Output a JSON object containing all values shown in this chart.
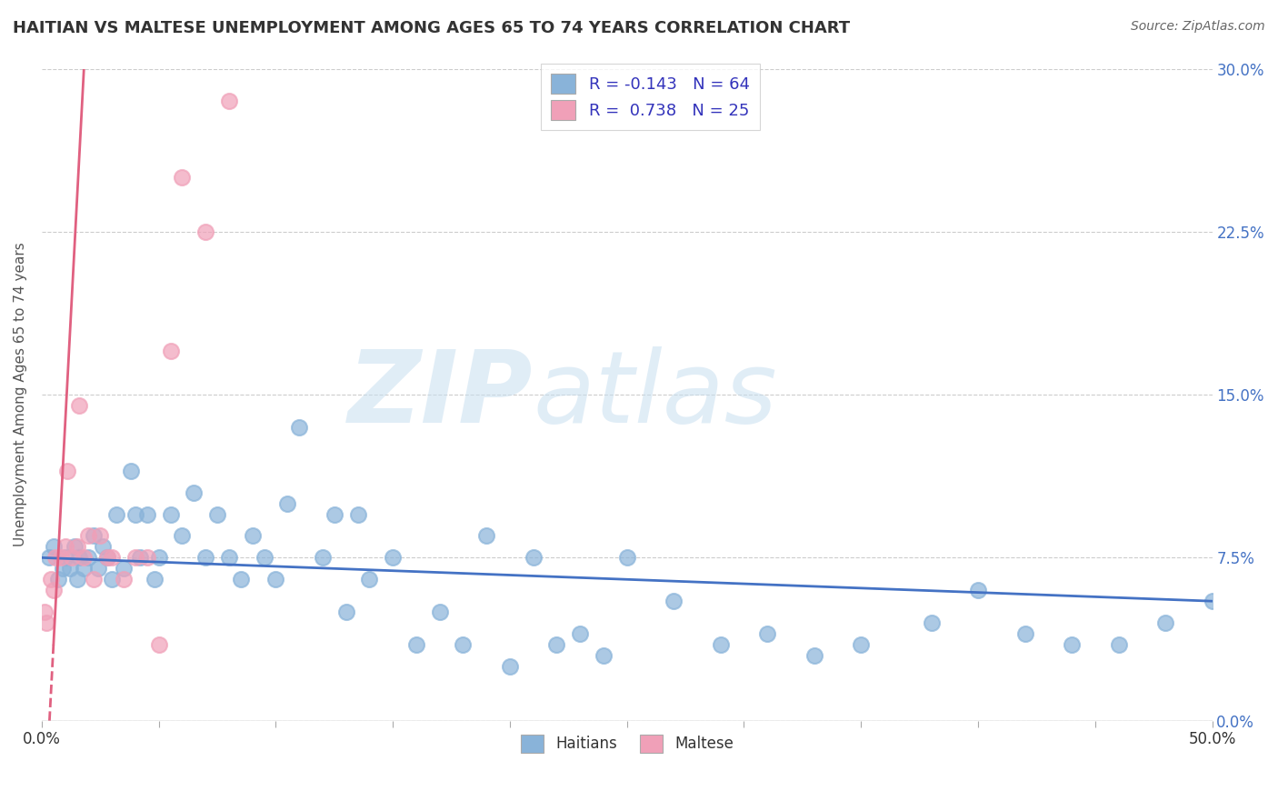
{
  "title": "HAITIAN VS MALTESE UNEMPLOYMENT AMONG AGES 65 TO 74 YEARS CORRELATION CHART",
  "source": "Source: ZipAtlas.com",
  "ylabel": "Unemployment Among Ages 65 to 74 years",
  "xlim": [
    0.0,
    50.0
  ],
  "ylim": [
    0.0,
    30.0
  ],
  "yticks_right": [
    0.0,
    7.5,
    15.0,
    22.5,
    30.0
  ],
  "background_color": "#ffffff",
  "grid_color": "#cccccc",
  "legend": {
    "haitian_color": "#89b3d9",
    "haitian_edge": "#6699cc",
    "maltese_color": "#f0a0b8",
    "maltese_edge": "#dd7799",
    "haitian_R": "-0.143",
    "haitian_N": "64",
    "maltese_R": "0.738",
    "maltese_N": "25"
  },
  "haitian_scatter": {
    "x": [
      0.3,
      0.5,
      0.7,
      0.9,
      1.0,
      1.2,
      1.4,
      1.5,
      1.6,
      1.8,
      2.0,
      2.2,
      2.4,
      2.6,
      2.8,
      3.0,
      3.2,
      3.5,
      3.8,
      4.0,
      4.2,
      4.5,
      4.8,
      5.0,
      5.5,
      6.0,
      6.5,
      7.0,
      7.5,
      8.0,
      8.5,
      9.0,
      9.5,
      10.0,
      10.5,
      11.0,
      12.0,
      12.5,
      13.0,
      13.5,
      14.0,
      15.0,
      16.0,
      17.0,
      18.0,
      19.0,
      20.0,
      21.0,
      22.0,
      23.0,
      24.0,
      25.0,
      27.0,
      29.0,
      31.0,
      33.0,
      35.0,
      38.0,
      40.0,
      42.0,
      44.0,
      46.0,
      48.0,
      50.0
    ],
    "y": [
      7.5,
      8.0,
      6.5,
      7.0,
      7.5,
      7.0,
      8.0,
      6.5,
      7.5,
      7.0,
      7.5,
      8.5,
      7.0,
      8.0,
      7.5,
      6.5,
      9.5,
      7.0,
      11.5,
      9.5,
      7.5,
      9.5,
      6.5,
      7.5,
      9.5,
      8.5,
      10.5,
      7.5,
      9.5,
      7.5,
      6.5,
      8.5,
      7.5,
      6.5,
      10.0,
      13.5,
      7.5,
      9.5,
      5.0,
      9.5,
      6.5,
      7.5,
      3.5,
      5.0,
      3.5,
      8.5,
      2.5,
      7.5,
      3.5,
      4.0,
      3.0,
      7.5,
      5.5,
      3.5,
      4.0,
      3.0,
      3.5,
      4.5,
      6.0,
      4.0,
      3.5,
      3.5,
      4.5,
      5.5
    ]
  },
  "maltese_scatter": {
    "x": [
      0.1,
      0.2,
      0.4,
      0.5,
      0.6,
      0.8,
      1.0,
      1.1,
      1.3,
      1.5,
      1.6,
      1.8,
      2.0,
      2.2,
      2.5,
      2.8,
      3.0,
      3.5,
      4.0,
      4.5,
      5.0,
      5.5,
      6.0,
      7.0,
      8.0
    ],
    "y": [
      5.0,
      4.5,
      6.5,
      6.0,
      7.5,
      7.5,
      8.0,
      11.5,
      7.5,
      8.0,
      14.5,
      7.5,
      8.5,
      6.5,
      8.5,
      7.5,
      7.5,
      6.5,
      7.5,
      7.5,
      3.5,
      17.0,
      25.0,
      22.5,
      28.5
    ]
  },
  "haitian_line": {
    "x": [
      0.0,
      50.0
    ],
    "y": [
      7.5,
      5.5
    ],
    "color": "#4472c4",
    "linewidth": 2.0
  },
  "maltese_line_solid": {
    "x": [
      0.5,
      1.8
    ],
    "y": [
      3.5,
      30.0
    ],
    "color": "#e06080",
    "linewidth": 2.0
  },
  "maltese_line_dashed": {
    "x": [
      0.0,
      0.5
    ],
    "y": [
      -10.0,
      3.5
    ],
    "color": "#e06080",
    "linewidth": 2.0
  }
}
